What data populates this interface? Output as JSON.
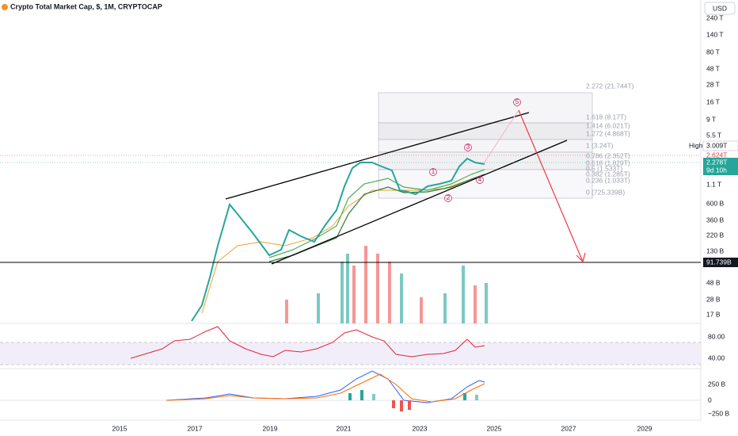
{
  "header": {
    "title": "Crypto Total Market Cap, $, 1M, CRYPTOCAP",
    "currency": "USD"
  },
  "price_axis": [
    "240 T",
    "140 T",
    "80 T",
    "48 T",
    "28 T",
    "16 T",
    "9 T",
    "5.5 T",
    "1.1 T",
    "600 B",
    "360 B",
    "220 B",
    "130 B",
    "48 B",
    "28 B",
    "17 B"
  ],
  "time_axis": [
    "2015",
    "2017",
    "2019",
    "2021",
    "2023",
    "2025",
    "2027",
    "2029"
  ],
  "fib_levels": [
    "2.272 (21.744T)",
    "1.618 (8.17T)",
    "1.414 (6.021T)",
    "1.272 (4.868T)",
    "1 (3.24T)",
    "0.786 (2.352T)",
    "0.618 (1.829T)",
    "0.5 (1.533T)",
    "0.382 (1.285T)",
    "0.236 (1.033T)",
    "0 (725.339B)"
  ],
  "waves": [
    "1",
    "2",
    "3",
    "4",
    "5"
  ],
  "tags": {
    "high_label": "High",
    "high": "3.009T",
    "prev": "2.624T",
    "last": "2.278T",
    "countdown": "9d 10h",
    "support": "91.739B"
  },
  "rsi_axis": [
    "80.00",
    "40.00"
  ],
  "macd_axis": [
    "250 B",
    "0",
    "−250 B"
  ]
}
